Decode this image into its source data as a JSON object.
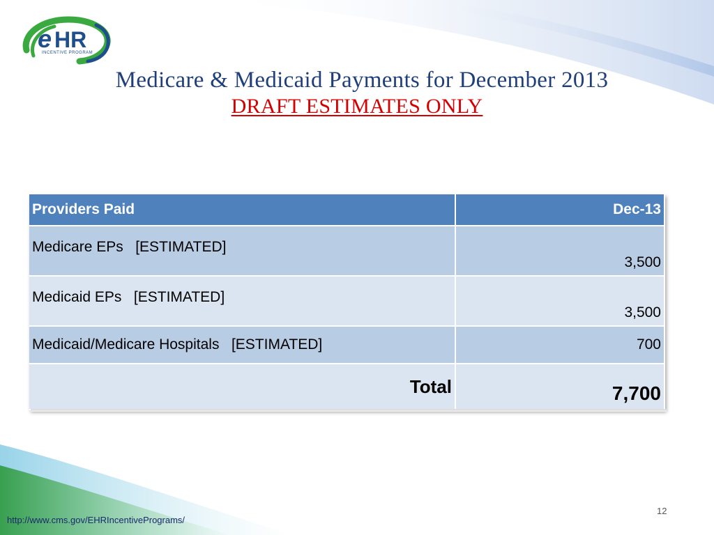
{
  "logo": {
    "mark": "eHR",
    "subtitle": "INCENTIVE PROGRAM",
    "colors": {
      "green": "#3aa940",
      "blue": "#1e4e8c"
    }
  },
  "title": {
    "line1": "Medicare & Medicaid Payments for December 2013",
    "line2": "DRAFT ESTIMATES ONLY"
  },
  "table": {
    "headers": [
      "Providers Paid",
      "Dec-13"
    ],
    "rows": [
      {
        "label": "Medicare EPs   [ESTIMATED]",
        "value": "3,500"
      },
      {
        "label": "Medicaid EPs   [ESTIMATED]",
        "value": "3,500"
      },
      {
        "label": "Medicaid/Medicare Hospitals   [ESTIMATED]",
        "value": "700"
      }
    ],
    "total": {
      "label": "Total",
      "value": "7,700"
    }
  },
  "footer": {
    "page_number": "12",
    "url": "http://www.cms.gov/EHRIncentivePrograms/"
  },
  "colors": {
    "header_bg": "#4f81bd",
    "row_dark": "#b8cce4",
    "row_light": "#dbe5f1",
    "title_blue": "#1f3f7a",
    "draft_red": "#d40000"
  }
}
